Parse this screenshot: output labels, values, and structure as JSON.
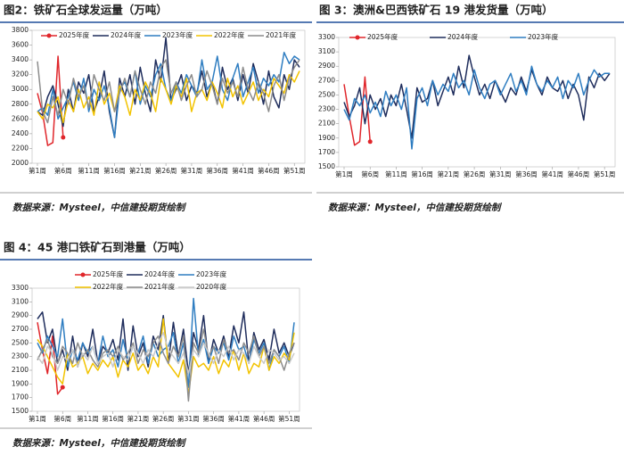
{
  "chart_data": [
    {
      "type": "line",
      "title": "图2：铁矿石全球发运量（万吨）",
      "source": "数据来源：Mysteel，中信建投期货绘制",
      "categories": [
        "第1周",
        null,
        null,
        null,
        null,
        "第6周",
        null,
        null,
        null,
        null,
        "第11周",
        null,
        null,
        null,
        null,
        "第16周",
        null,
        null,
        null,
        null,
        "第21周",
        null,
        null,
        null,
        null,
        "第26周",
        null,
        null,
        null,
        null,
        "第31周",
        null,
        null,
        null,
        null,
        "第36周",
        null,
        null,
        null,
        null,
        "第41周",
        null,
        null,
        null,
        null,
        "第46周",
        null,
        null,
        null,
        null,
        "第51周",
        null
      ],
      "ylim": [
        2000,
        3800
      ],
      "yticks": [
        2000,
        2200,
        2400,
        2600,
        2800,
        3000,
        3200,
        3400,
        3600,
        3800
      ],
      "series": [
        {
          "name": "2025年度",
          "color": "#e0262b",
          "marker": "end",
          "values": [
            2950,
            2680,
            2240,
            2280,
            3450,
            2350,
            null,
            null,
            null,
            null,
            null,
            null,
            null,
            null,
            null,
            null,
            null,
            null,
            null,
            null,
            null,
            null,
            null,
            null,
            null,
            null,
            null,
            null,
            null,
            null,
            null,
            null,
            null,
            null,
            null,
            null,
            null,
            null,
            null,
            null,
            null,
            null,
            null,
            null,
            null,
            null,
            null,
            null,
            null,
            null,
            null,
            null
          ]
        },
        {
          "name": "2024年度",
          "color": "#1f2d5c",
          "values": [
            2700,
            2650,
            2900,
            3050,
            2800,
            2500,
            3000,
            2700,
            3100,
            2950,
            3200,
            2700,
            2900,
            3250,
            2700,
            2350,
            3150,
            2900,
            3200,
            2800,
            3300,
            2950,
            2700,
            3400,
            3100,
            3700,
            2850,
            3000,
            3200,
            2850,
            3050,
            2950,
            3250,
            2900,
            3100,
            2800,
            3300,
            3000,
            3150,
            2850,
            3200,
            2950,
            3350,
            3100,
            2800,
            3250,
            2900,
            2750,
            3200,
            3000,
            3400,
            3300
          ]
        },
        {
          "name": "2023年度",
          "color": "#2e7dc1",
          "values": [
            2700,
            2750,
            2650,
            3000,
            2600,
            2750,
            2900,
            3100,
            2850,
            3150,
            2700,
            3000,
            2850,
            3050,
            2750,
            2350,
            3000,
            3100,
            2900,
            3250,
            2800,
            3050,
            2900,
            3200,
            3350,
            3000,
            2850,
            3100,
            2950,
            3200,
            3050,
            2900,
            3400,
            3000,
            3100,
            3450,
            3000,
            2850,
            3150,
            3350,
            2900,
            3100,
            3300,
            2950,
            3150,
            3050,
            3200,
            3100,
            3500,
            3350,
            3450,
            3400
          ]
        },
        {
          "name": "2022年度",
          "color": "#f2c300",
          "values": [
            2700,
            2600,
            2800,
            2750,
            2900,
            2550,
            2850,
            2700,
            3000,
            2750,
            2900,
            2650,
            3100,
            2800,
            2950,
            2700,
            3050,
            2900,
            2650,
            3000,
            2850,
            3100,
            2950,
            2700,
            3150,
            3000,
            2800,
            3050,
            2900,
            3150,
            2700,
            2950,
            3000,
            2850,
            3100,
            2950,
            2750,
            3150,
            2900,
            3050,
            2800,
            2950,
            3100,
            2850,
            3000,
            2900,
            3150,
            3050,
            2950,
            3200,
            3100,
            3250
          ]
        },
        {
          "name": "2021年度",
          "color": "#8c8c8c",
          "values": [
            3380,
            2700,
            2550,
            2900,
            2650,
            3000,
            2800,
            3150,
            2900,
            3050,
            2750,
            3200,
            3000,
            2850,
            3100,
            2700,
            2950,
            3150,
            2900,
            3250,
            3000,
            2800,
            3100,
            2950,
            3300,
            3400,
            2950,
            3100,
            2850,
            3050,
            3200,
            2900,
            3000,
            3250,
            3050,
            2800,
            3150,
            2950,
            3100,
            2900,
            3300,
            3000,
            2850,
            3100,
            2950,
            2700,
            3050,
            3200,
            2850,
            3150,
            3300,
            3400
          ]
        }
      ]
    },
    {
      "type": "line",
      "title": "图 3：澳洲&巴西铁矿石 19 港发货量（万吨）",
      "source": "数据来源：Mysteel，中信建投期货绘制",
      "categories": [
        "第1周",
        null,
        null,
        null,
        null,
        "第6周",
        null,
        null,
        null,
        null,
        "第11周",
        null,
        null,
        null,
        null,
        "第16周",
        null,
        null,
        null,
        null,
        "第21周",
        null,
        null,
        null,
        null,
        "第26周",
        null,
        null,
        null,
        null,
        "第31周",
        null,
        null,
        null,
        null,
        "第36周",
        null,
        null,
        null,
        null,
        "第41周",
        null,
        null,
        null,
        null,
        "第46周",
        null,
        null,
        null,
        null,
        "第51周",
        null
      ],
      "ylim": [
        1500,
        3300
      ],
      "yticks": [
        1500,
        1700,
        1900,
        2100,
        2300,
        2500,
        2700,
        2900,
        3100,
        3300
      ],
      "series": [
        {
          "name": "2025年度",
          "color": "#e0262b",
          "marker": "end",
          "values": [
            2650,
            2200,
            1800,
            1850,
            2750,
            1850,
            null,
            null,
            null,
            null,
            null,
            null,
            null,
            null,
            null,
            null,
            null,
            null,
            null,
            null,
            null,
            null,
            null,
            null,
            null,
            null,
            null,
            null,
            null,
            null,
            null,
            null,
            null,
            null,
            null,
            null,
            null,
            null,
            null,
            null,
            null,
            null,
            null,
            null,
            null,
            null,
            null,
            null,
            null,
            null,
            null,
            null
          ]
        },
        {
          "name": "2024年度",
          "color": "#1f2d5c",
          "values": [
            2400,
            2200,
            2350,
            2600,
            2100,
            2500,
            2300,
            2450,
            2200,
            2500,
            2350,
            2650,
            2300,
            1900,
            2600,
            2400,
            2450,
            2700,
            2350,
            2550,
            2750,
            2500,
            2900,
            2600,
            3050,
            2750,
            2500,
            2650,
            2450,
            2700,
            2550,
            2400,
            2600,
            2500,
            2750,
            2550,
            2850,
            2650,
            2500,
            2750,
            2600,
            2550,
            2700,
            2450,
            2650,
            2500,
            2150,
            2750,
            2600,
            2800,
            2700,
            2800
          ]
        },
        {
          "name": "2023年度",
          "color": "#2e7dc1",
          "values": [
            2300,
            2150,
            2450,
            2350,
            2500,
            2250,
            2400,
            2200,
            2550,
            2350,
            2500,
            2300,
            2600,
            1750,
            2450,
            2600,
            2350,
            2700,
            2500,
            2650,
            2550,
            2800,
            2600,
            2700,
            2500,
            2850,
            2600,
            2450,
            2650,
            2700,
            2500,
            2650,
            2800,
            2550,
            2700,
            2500,
            2900,
            2650,
            2550,
            2700,
            2600,
            2750,
            2450,
            2700,
            2600,
            2800,
            2500,
            2700,
            2850,
            2750,
            2800,
            2800
          ]
        }
      ]
    },
    {
      "type": "line",
      "title": "图 4：45 港口铁矿石到港量（万吨）",
      "source": "数据来源：Mysteel，中信建投期货绘制",
      "categories": [
        "第1周",
        null,
        null,
        null,
        null,
        "第6周",
        null,
        null,
        null,
        null,
        "第11周",
        null,
        null,
        null,
        null,
        "第16周",
        null,
        null,
        null,
        null,
        "第21周",
        null,
        null,
        null,
        null,
        "第26周",
        null,
        null,
        null,
        null,
        "第31周",
        null,
        null,
        null,
        null,
        "第36周",
        null,
        null,
        null,
        null,
        "第41周",
        null,
        null,
        null,
        null,
        "第46周",
        null,
        null,
        null,
        null,
        "第51周",
        null
      ],
      "ylim": [
        1500,
        3300
      ],
      "yticks": [
        1500,
        1700,
        1900,
        2100,
        2300,
        2500,
        2700,
        2900,
        3100,
        3300
      ],
      "series": [
        {
          "name": "2025年度",
          "color": "#e0262b",
          "marker": "end",
          "values": [
            2800,
            2400,
            2050,
            2600,
            1750,
            1850,
            null,
            null,
            null,
            null,
            null,
            null,
            null,
            null,
            null,
            null,
            null,
            null,
            null,
            null,
            null,
            null,
            null,
            null,
            null,
            null,
            null,
            null,
            null,
            null,
            null,
            null,
            null,
            null,
            null,
            null,
            null,
            null,
            null,
            null,
            null,
            null,
            null,
            null,
            null,
            null,
            null,
            null,
            null,
            null,
            null,
            null
          ]
        },
        {
          "name": "2024年度",
          "color": "#1f2d5c",
          "values": [
            2850,
            2950,
            2500,
            2700,
            2200,
            2400,
            2100,
            2600,
            2150,
            2500,
            2300,
            2700,
            2200,
            2450,
            2350,
            2550,
            2250,
            2850,
            2100,
            2750,
            2300,
            2500,
            2150,
            2600,
            2400,
            2900,
            2200,
            2800,
            2300,
            2700,
            2050,
            2650,
            2400,
            2900,
            2200,
            2550,
            2350,
            2600,
            2300,
            2750,
            2500,
            2950,
            2200,
            2650,
            2400,
            2550,
            2250,
            2700,
            2350,
            2500,
            2300,
            2500
          ]
        },
        {
          "name": "2023年度",
          "color": "#2e7dc1",
          "values": [
            2500,
            2350,
            2600,
            2450,
            2300,
            2850,
            2150,
            2400,
            2250,
            2500,
            2350,
            2450,
            2200,
            2600,
            2300,
            2400,
            2150,
            2550,
            2250,
            2450,
            2350,
            2600,
            2200,
            2500,
            2300,
            2400,
            2450,
            2650,
            2200,
            2500,
            1850,
            3150,
            2300,
            2550,
            2200,
            2450,
            2350,
            2500,
            2250,
            2600,
            2400,
            2450,
            2200,
            2550,
            2350,
            2500,
            2100,
            2400,
            2300,
            2450,
            2200,
            2800
          ]
        },
        {
          "name": "2022年度",
          "color": "#f2c300",
          "values": [
            2550,
            2450,
            2300,
            2150,
            2000,
            1900,
            2350,
            2150,
            2200,
            2300,
            2050,
            2200,
            2100,
            2250,
            2150,
            2300,
            2000,
            2250,
            2150,
            2350,
            2100,
            2200,
            2050,
            2300,
            2150,
            2850,
            2200,
            2100,
            2000,
            2250,
            1750,
            2300,
            2150,
            2200,
            2100,
            2300,
            2050,
            2250,
            2150,
            2400,
            2100,
            2350,
            2050,
            2200,
            2150,
            2450,
            2100,
            2300,
            2200,
            2350,
            2250,
            2650
          ]
        },
        {
          "name": "2021年度",
          "color": "#8c8c8c",
          "values": [
            2250,
            2400,
            2550,
            2300,
            2200,
            2450,
            2350,
            2200,
            2500,
            2300,
            2400,
            2250,
            2150,
            2350,
            2400,
            2300,
            2450,
            2250,
            2350,
            2500,
            2200,
            2400,
            2300,
            2500,
            2600,
            2350,
            2200,
            2450,
            2300,
            2600,
            1650,
            2500,
            2350,
            2700,
            2300,
            2450,
            2200,
            2550,
            2350,
            2400,
            2250,
            2500,
            2350,
            2600,
            2300,
            2450,
            2200,
            2400,
            2300,
            2100,
            2350,
            2500
          ]
        },
        {
          "name": "2020年度",
          "color": "#c9c9c9",
          "values": [
            2300,
            2200,
            2450,
            2350,
            2100,
            2300,
            2250,
            2400,
            2150,
            2350,
            2250,
            2450,
            2200,
            2300,
            2350,
            2150,
            2400,
            2300,
            2250,
            2450,
            2350,
            2200,
            2400,
            2300,
            2500,
            2650,
            2400,
            2300,
            2200,
            2350,
            2050,
            2400,
            2300,
            2500,
            2350,
            2200,
            2400,
            2300,
            2450,
            2250,
            2400,
            2350,
            2200,
            2450,
            2300,
            2200,
            2400,
            2350,
            2250,
            2300,
            2200,
            2350
          ]
        }
      ]
    }
  ]
}
